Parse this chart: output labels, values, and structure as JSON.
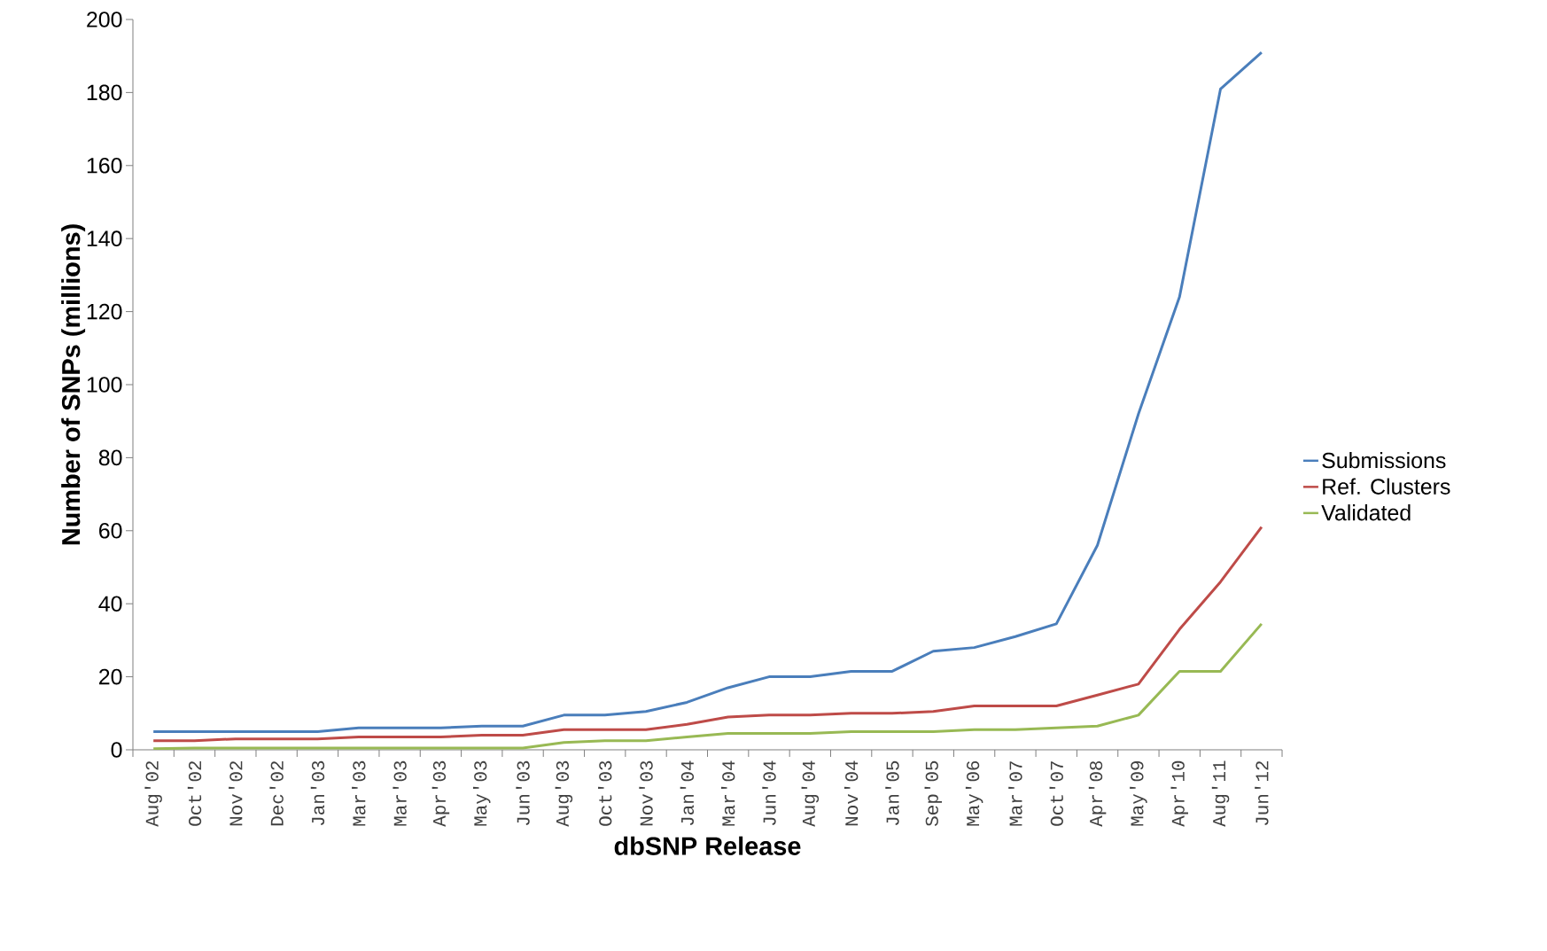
{
  "chart_data": {
    "type": "line",
    "xlabel": "dbSNP Release",
    "ylabel": "Number of SNPs (millions)",
    "categories": [
      "Aug'02",
      "Oct'02",
      "Nov'02",
      "Dec'02",
      "Jan'03",
      "Mar'03",
      "Mar'03",
      "Apr'03",
      "May'03",
      "Jun'03",
      "Aug'03",
      "Oct'03",
      "Nov'03",
      "Jan'04",
      "Mar'04",
      "Jun'04",
      "Aug'04",
      "Nov'04",
      "Jan'05",
      "Sep'05",
      "May'06",
      "Mar'07",
      "Oct'07",
      "Apr'08",
      "May'09",
      "Apr'10",
      "Aug'11",
      "Jun'12"
    ],
    "series": [
      {
        "name": "Submissions",
        "color": "#4a7ebb",
        "values": [
          5,
          5,
          5,
          5,
          5,
          6,
          6,
          6,
          6.5,
          6.5,
          9.5,
          9.5,
          10.5,
          13,
          17,
          20,
          20,
          21.5,
          21.5,
          27,
          28,
          31,
          34.5,
          56,
          92,
          124,
          181,
          191
        ]
      },
      {
        "name": "Ref. Clusters",
        "color": "#be4b48",
        "values": [
          2.5,
          2.5,
          3,
          3,
          3,
          3.5,
          3.5,
          3.5,
          4,
          4,
          5.5,
          5.5,
          5.5,
          7,
          9,
          9.5,
          9.5,
          10,
          10,
          10.5,
          12,
          12,
          12,
          15,
          18,
          33,
          46,
          61
        ]
      },
      {
        "name": "Validated",
        "color": "#98b954",
        "values": [
          0.3,
          0.5,
          0.5,
          0.5,
          0.5,
          0.5,
          0.5,
          0.5,
          0.5,
          0.5,
          2,
          2.5,
          2.5,
          3.5,
          4.5,
          4.5,
          4.5,
          5,
          5,
          5,
          5.5,
          5.5,
          6,
          6.5,
          9.5,
          21.5,
          21.5,
          34.5
        ]
      }
    ],
    "ylim": [
      0,
      200
    ],
    "yticks": [
      0,
      20,
      40,
      60,
      80,
      100,
      120,
      140,
      160,
      180,
      200
    ],
    "legend": "right",
    "grid": false,
    "marker": "none",
    "line_style": "solid"
  }
}
